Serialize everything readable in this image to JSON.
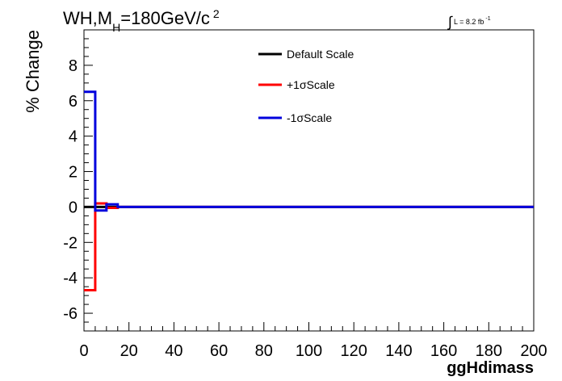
{
  "chart_data": {
    "type": "line",
    "title": {
      "main": "WH,M",
      "subscript": "H",
      "rest": "=180GeV/c",
      "superscript": "2"
    },
    "luminosity": {
      "symbol": "∫",
      "text": "L = 8.2 fb",
      "superscript": "-1"
    },
    "xlabel": "ggHdimass",
    "ylabel": "% Change",
    "xlim": [
      0,
      200
    ],
    "ylim": [
      -7,
      10
    ],
    "x_ticks": [
      "0",
      "20",
      "40",
      "60",
      "80",
      "100",
      "120",
      "140",
      "160",
      "180",
      "200"
    ],
    "y_ticks": [
      "-6",
      "-4",
      "-2",
      "0",
      "2",
      "4",
      "6",
      "8"
    ],
    "x_tick_values": [
      0,
      20,
      40,
      60,
      80,
      100,
      120,
      140,
      160,
      180,
      200
    ],
    "y_tick_values": [
      -6,
      -4,
      -2,
      0,
      2,
      4,
      6,
      8
    ],
    "bin_edges": [
      0,
      5,
      10,
      15,
      20,
      25,
      30,
      35,
      40,
      45,
      50,
      55,
      60,
      65,
      70,
      75,
      80,
      85,
      90,
      95,
      100,
      105,
      110,
      115,
      120,
      125,
      130,
      135,
      140,
      145,
      150,
      155,
      160,
      165,
      170,
      175,
      180,
      185,
      190,
      195,
      200
    ],
    "grid": false,
    "legend_position": "top-center",
    "series": [
      {
        "name": "Default Scale",
        "color": "#000000",
        "values": [
          0,
          0,
          0,
          0,
          0,
          0,
          0,
          0,
          0,
          0,
          0,
          0,
          0,
          0,
          0,
          0,
          0,
          0,
          0,
          0,
          0,
          0,
          0,
          0,
          0,
          0,
          0,
          0,
          0,
          0,
          0,
          0,
          0,
          0,
          0,
          0,
          0,
          0,
          0,
          0
        ]
      },
      {
        "name": "+1σScale",
        "color": "#ff0000",
        "values": [
          -4.7,
          0.2,
          -0.05,
          0,
          0,
          0,
          0,
          0,
          0,
          0,
          0,
          0,
          0,
          0,
          0,
          0,
          0,
          0,
          0,
          0,
          0,
          0,
          0,
          0,
          0,
          0,
          0,
          0,
          0,
          0,
          0,
          0,
          0,
          0,
          0,
          0,
          0,
          0,
          0,
          0
        ]
      },
      {
        "name": "-1σScale",
        "color": "#0000dd",
        "values": [
          6.5,
          -0.2,
          0.15,
          0,
          0,
          0,
          0,
          0,
          0,
          0,
          0,
          0,
          0,
          0,
          0,
          0,
          0,
          0,
          0,
          0,
          0,
          0,
          0,
          0,
          0,
          0,
          0,
          0,
          0,
          0,
          0,
          0,
          0,
          0,
          0,
          0,
          0,
          0,
          0,
          0
        ]
      }
    ]
  }
}
